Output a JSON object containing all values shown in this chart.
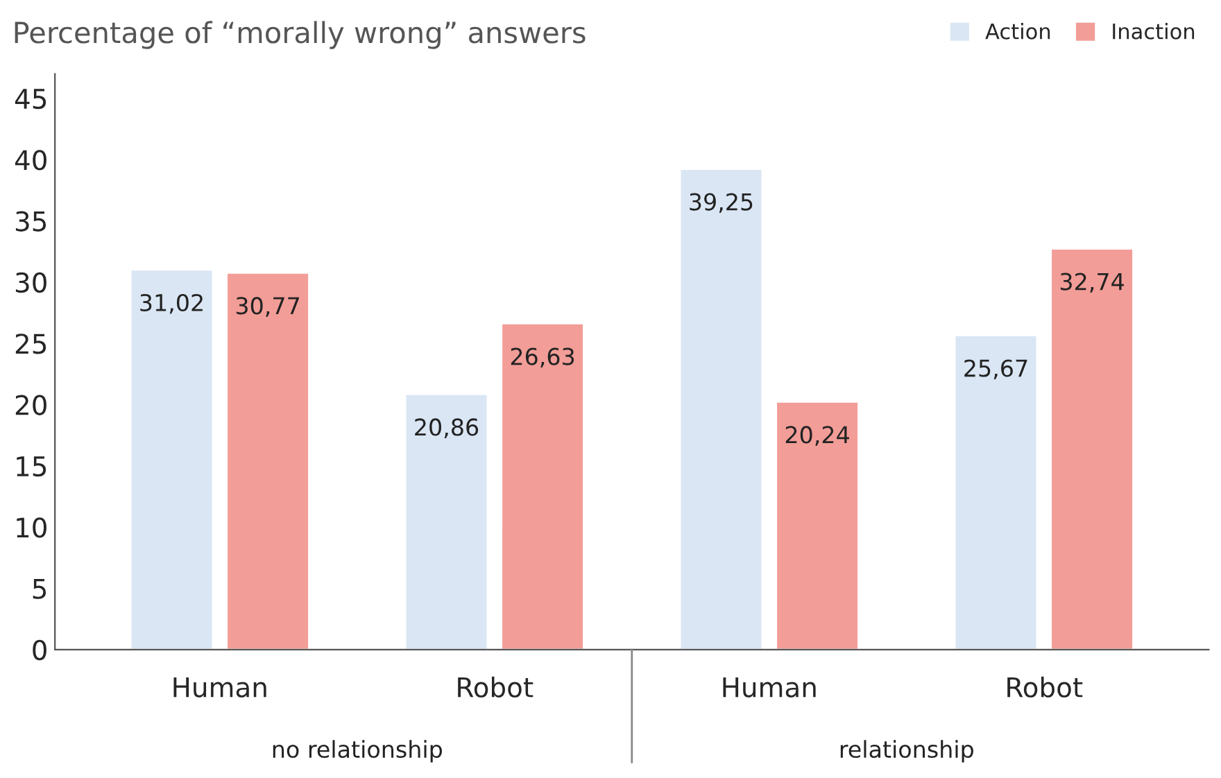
{
  "chart_data": {
    "type": "bar",
    "title": "Percentage of “morally wrong” answers",
    "categories": [
      "Human",
      "Robot",
      "Human",
      "Robot"
    ],
    "series": [
      {
        "name": "Action",
        "color": "#dae6f4",
        "values": [
          31.02,
          20.86,
          39.25,
          25.67
        ],
        "value_labels": [
          "31,02",
          "20,86",
          "39,25",
          "25,67"
        ]
      },
      {
        "name": "Inaction",
        "color": "#f29d97",
        "values": [
          30.77,
          26.63,
          20.24,
          32.74
        ],
        "value_labels": [
          "30,77",
          "26,63",
          "20,24",
          "32,74"
        ]
      }
    ],
    "ylim": [
      0,
      47
    ],
    "yticks": [
      0,
      5,
      10,
      15,
      20,
      25,
      30,
      35,
      40,
      45
    ],
    "annotations": [
      "no relationship",
      "relationship"
    ],
    "grid": false,
    "legend": "top right"
  }
}
